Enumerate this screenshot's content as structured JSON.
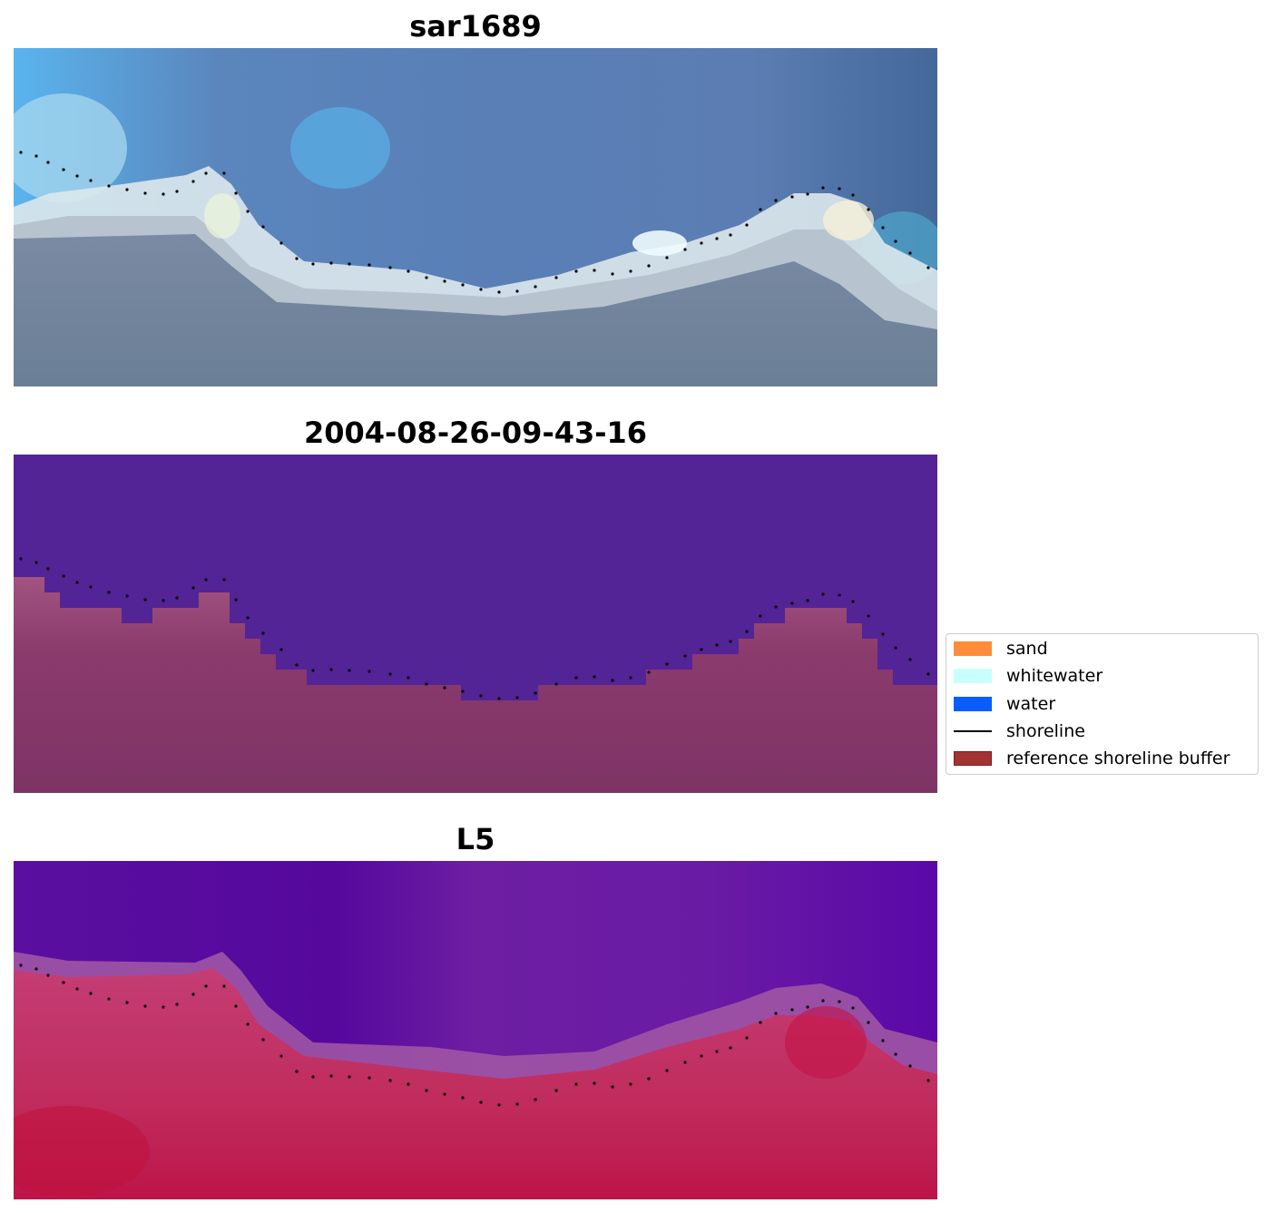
{
  "panels": [
    {
      "title": "sar1689",
      "kind": "rgb"
    },
    {
      "title": "2004-08-26-09-43-16",
      "kind": "classified"
    },
    {
      "title": "L5",
      "kind": "index"
    }
  ],
  "legend": {
    "items": [
      {
        "label": "sand",
        "color": "#ff8c3a",
        "type": "patch"
      },
      {
        "label": "whitewater",
        "color": "#c8fffb",
        "type": "patch"
      },
      {
        "label": "water",
        "color": "#0a5cff",
        "type": "patch"
      },
      {
        "label": "shoreline",
        "color": "#000000",
        "type": "line"
      },
      {
        "label": "reference shoreline buffer",
        "color": "#a33333",
        "type": "patch"
      }
    ]
  },
  "colors": {
    "shoreline_dots": "#000000",
    "water_class": "#532496",
    "buffer_class": "#813369"
  }
}
